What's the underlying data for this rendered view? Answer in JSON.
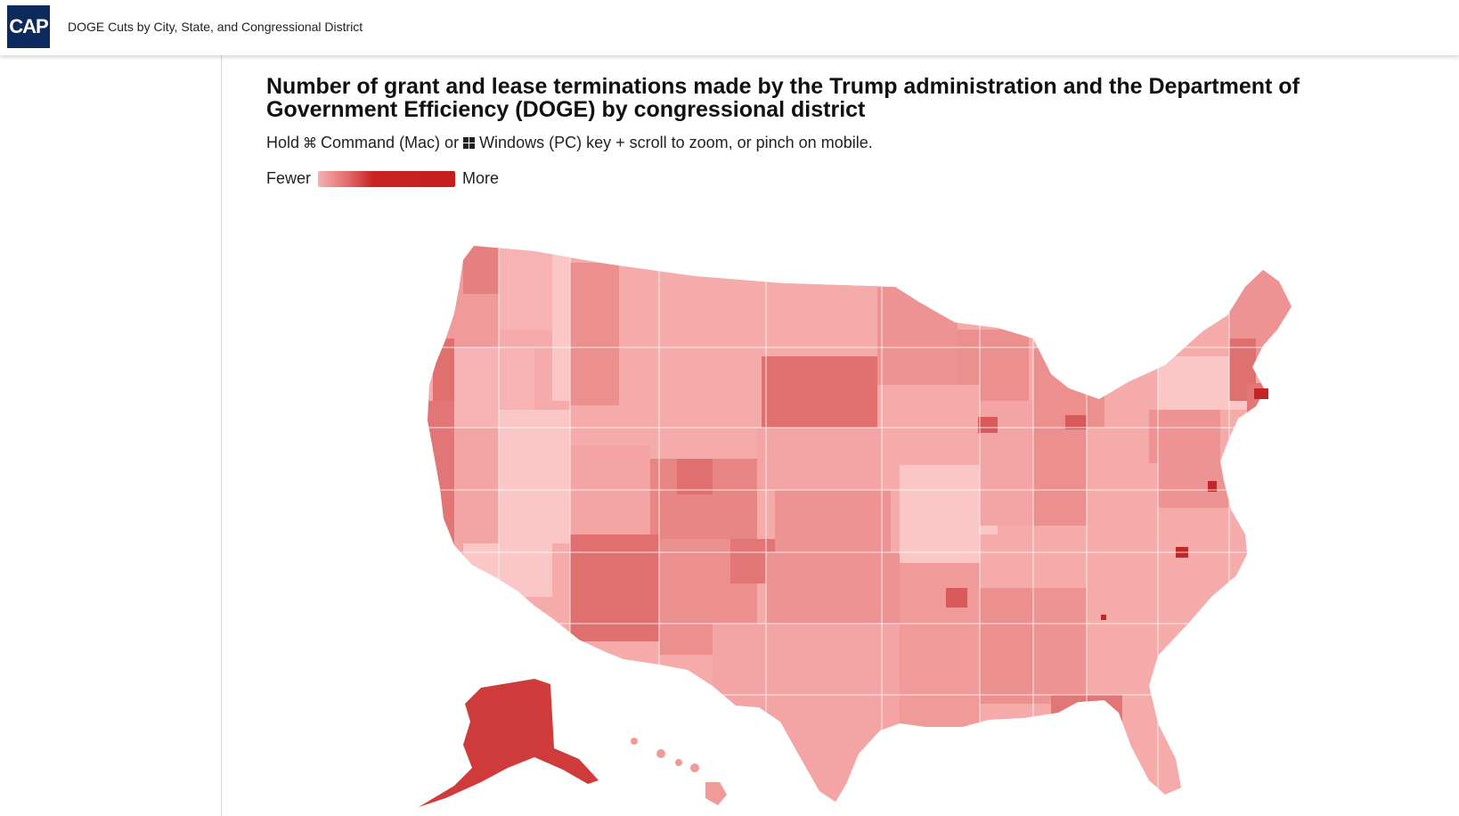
{
  "header": {
    "logo_text": "CAP",
    "doc_title": "DOGE Cuts by City, State, and Congressional District"
  },
  "chart": {
    "title": "Number of grant and lease terminations made by the Trump administration and the Department of Government Efficiency (DOGE) by congressional district",
    "hint": {
      "prefix": "Hold",
      "mac_key": "Command (Mac) or",
      "pc_key": "Windows (PC) key + scroll to zoom, or pinch on mobile."
    },
    "legend": {
      "low": "Fewer",
      "high": "More"
    }
  },
  "colors": {
    "light": "#f7b3b3",
    "lighter": "#fbc6c6",
    "mid": "#f09a9a",
    "medium": "#e58080",
    "dark": "#d95a5a",
    "darkest": "#c22626",
    "logo_bg": "#0d2a5e"
  },
  "icons": {
    "mac_key": "command-key-icon",
    "pc_key": "windows-key-icon"
  }
}
